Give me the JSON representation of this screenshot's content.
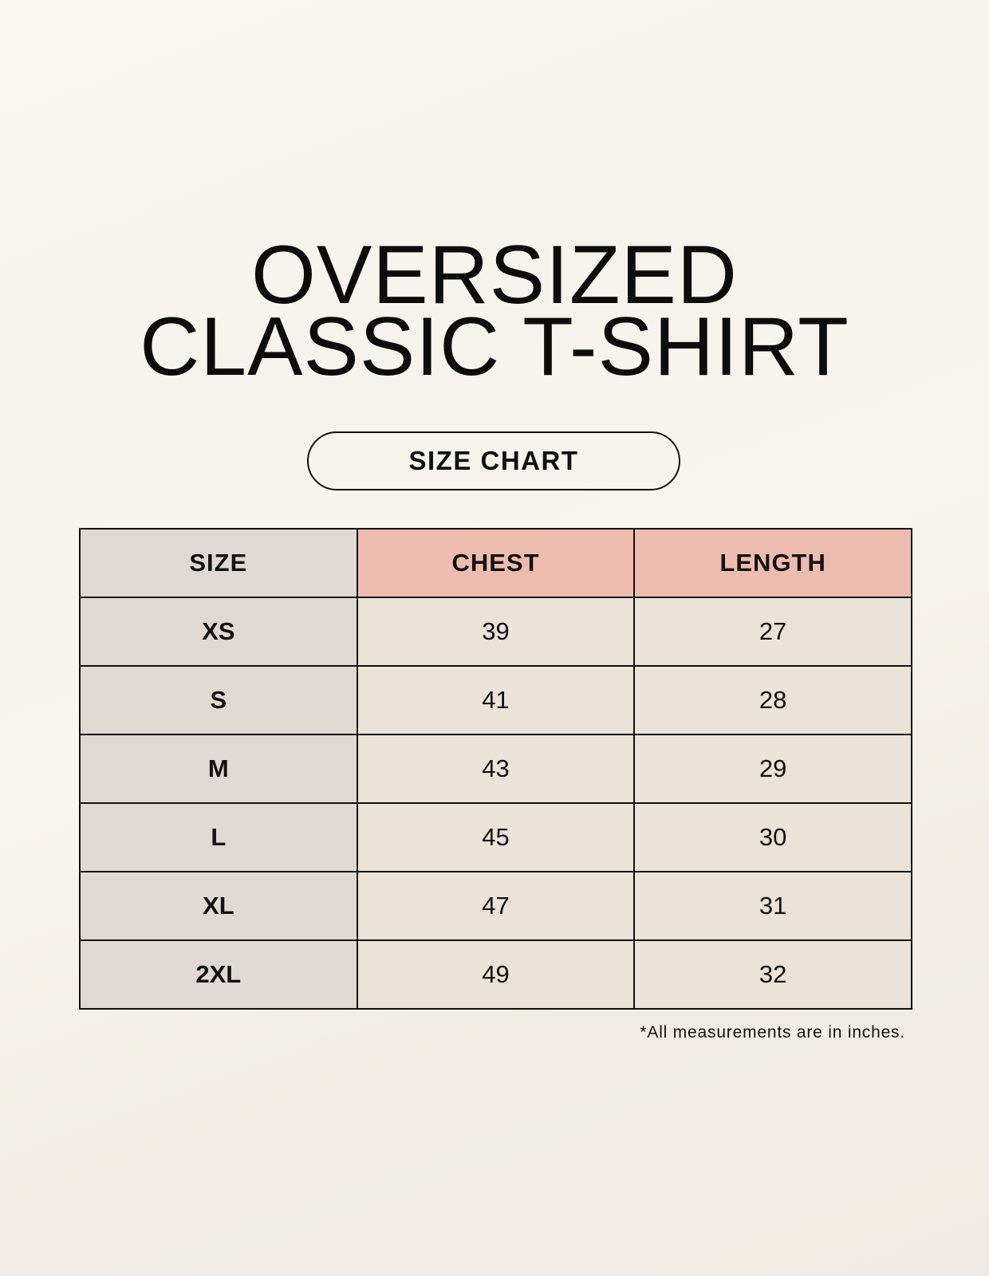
{
  "title": {
    "line1": "OVERSIZED",
    "line2": "CLASSIC T-SHIRT"
  },
  "subtitle_pill": "SIZE CHART",
  "table": {
    "headers": [
      "SIZE",
      "CHEST",
      "LENGTH"
    ],
    "rows": [
      {
        "size": "XS",
        "chest": "39",
        "length": "27"
      },
      {
        "size": "S",
        "chest": "41",
        "length": "28"
      },
      {
        "size": "M",
        "chest": "43",
        "length": "29"
      },
      {
        "size": "L",
        "chest": "45",
        "length": "30"
      },
      {
        "size": "XL",
        "chest": "47",
        "length": "31"
      },
      {
        "size": "2XL",
        "chest": "49",
        "length": "32"
      }
    ]
  },
  "footnote": "*All measurements are in inches.",
  "colors": {
    "background": "#f8f5ee",
    "size_column": "#e0d9d3",
    "header_accent": "#eebcaf",
    "value_cells": "#ebe2d8",
    "border": "#111111"
  }
}
